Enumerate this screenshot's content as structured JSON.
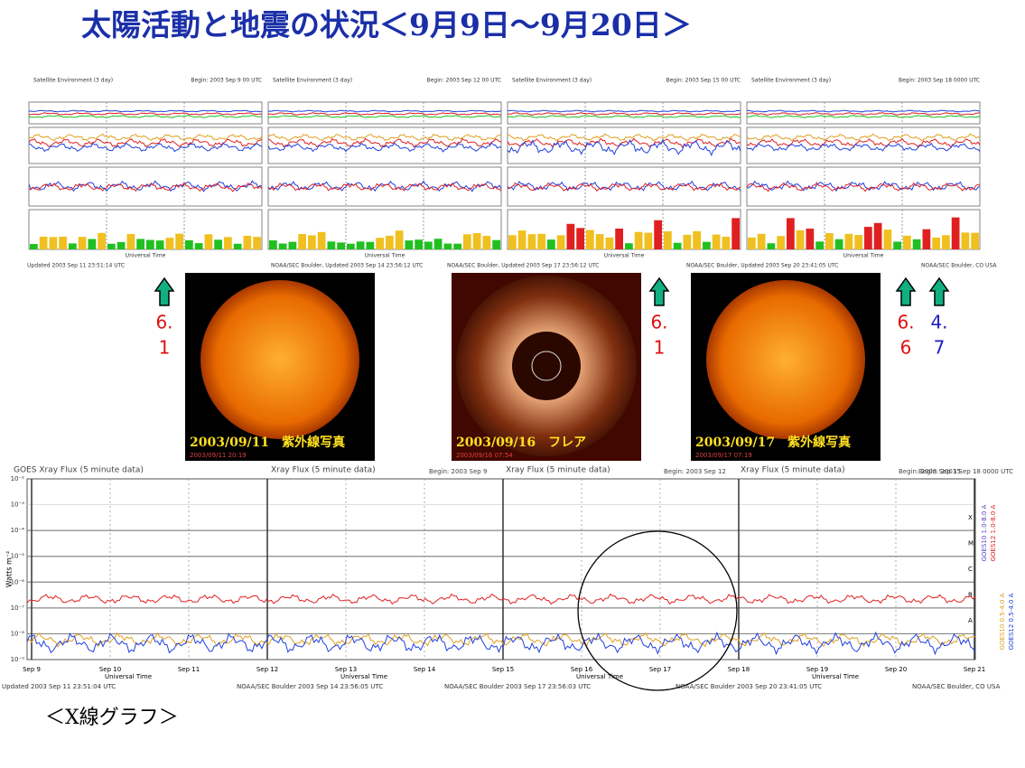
{
  "title": "太陽活動と地震の状況＜9月9日～9月20日＞",
  "panels": [
    {
      "header": "Satellite Environment (3 day)",
      "begin": "Begin: 2003 Sep 9 00 UTC"
    },
    {
      "header": "Satellite Environment (3 day)",
      "begin": "Begin: 2003 Sep 12 00 UTC"
    },
    {
      "header": "Satellite Environment (3 day)",
      "begin": "Begin: 2003 Sep 15 00 UTC"
    },
    {
      "header": "Satellite Environment (3 day)",
      "begin": "Begin: 2003 Sep 18 0000 UTC"
    }
  ],
  "panel_axis": "Universal Time",
  "panel_footers": [
    "Updated 2003 Sep 11 23:51:14 UTC",
    "NOAA/SEC Boulder, Updated 2003 Sep 14 23:56:12 UTC",
    "NOAA/SEC Boulder, Updated 2003 Sep 17 23:56:12 UTC",
    "NOAA/SEC Boulder, Updated 2003 Sep 20 23:41:05 UTC",
    "NOAA/SEC Boulder, CO USA"
  ],
  "photos": [
    {
      "caption": "2003/09/11　紫外線写真",
      "date": "2003/09/11 20:19"
    },
    {
      "caption": "2003/09/16　フレア",
      "date": "2003/09/16 07:54"
    },
    {
      "caption": "2003/09/17　紫外線写真",
      "date": "2003/09/17 07:19"
    }
  ],
  "quakes": [
    {
      "lines": [
        "6.",
        "1"
      ],
      "color": "#e01010"
    },
    {
      "lines": [
        "6.",
        "1"
      ],
      "color": "#e01010"
    },
    {
      "lines": [
        "6.",
        "6"
      ],
      "color": "#e01010"
    },
    {
      "lines": [
        "4.",
        "7"
      ],
      "color": "#2020c0"
    }
  ],
  "xray": {
    "headers": [
      "GOES Xray Flux (5 minute data)",
      "Xray Flux (5 minute data)",
      "Xray Flux (5 minute data)",
      "Xray Flux (5 minute data)"
    ],
    "begins": [
      "Begin: 2003 Sep 9",
      "Begin: 2003 Sep 12",
      "Begin: 2003 Sep 15",
      "Begin: 2003 Sep 18 0000 UTC"
    ],
    "ylabel": "Watts m⁻²",
    "yticks": [
      "10⁻²",
      "10⁻³",
      "10⁻⁴",
      "10⁻⁵",
      "10⁻⁶",
      "10⁻⁷",
      "10⁻⁸",
      "10⁻⁹"
    ],
    "classes": [
      "X",
      "M",
      "C",
      "B",
      "A"
    ],
    "xticks": [
      "Sep 9",
      "Sep 10",
      "Sep 11",
      "Sep 12",
      "Sep 13",
      "Sep 14",
      "Sep 15",
      "Sep 16",
      "Sep 17",
      "Sep 18",
      "Sep 19",
      "Sep 20",
      "Sep 21"
    ],
    "axis_label": "Universal Time",
    "right_labels": [
      "GOES10 1.0-8.0 A",
      "GOES12 1.0-8.0 A",
      "GOES10 0.5-4.0 A",
      "GOES12 0.5-4.0 A"
    ],
    "footers": [
      "Updated 2003 Sep 11 23:51:04 UTC",
      "NOAA/SEC Boulder 2003 Sep 14 23:56:05 UTC",
      "NOAA/SEC Boulder 2003 Sep 17 23:56:03 UTC",
      "NOAA/SEC Boulder 2003 Sep 20 23:41:05 UTC",
      "NOAA/SEC Boulder, CO USA"
    ]
  },
  "caption": "＜X線グラフ＞"
}
